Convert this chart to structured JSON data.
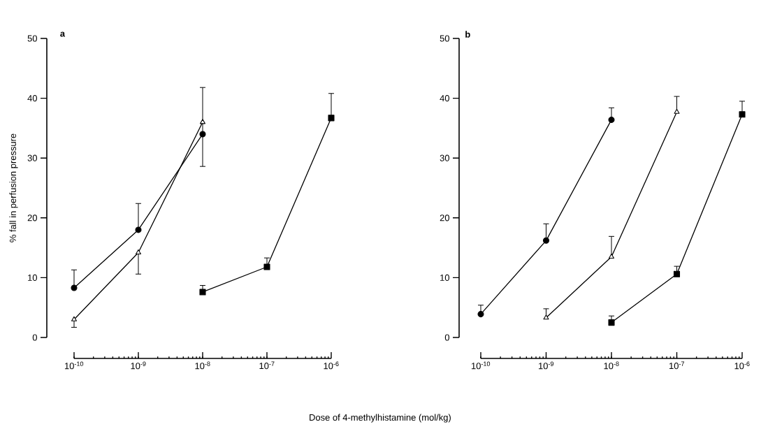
{
  "chart_data": [
    {
      "type": "line",
      "title": "a",
      "xlabel": "Dose of 4-methylhistamine  (mol/kg)",
      "ylabel": "% fall in perfusion pressure",
      "log": "x",
      "xlim": [
        1e-10,
        1e-06
      ],
      "ylim": [
        0,
        50
      ],
      "xticks": [
        {
          "value": 1e-10,
          "label": "10$^{-10}$"
        },
        {
          "value": 1e-09,
          "label": "10$^{-9}$"
        },
        {
          "value": 1e-08,
          "label": "10$^{-8}$"
        },
        {
          "value": 1e-07,
          "label": "10$^{-7}$"
        },
        {
          "value": 1e-06,
          "label": "10$^{-6}$"
        }
      ],
      "yticks": [
        0,
        10,
        20,
        30,
        40,
        50
      ],
      "series": [
        {
          "color": "#000000",
          "marker": "circle",
          "x": [
            1e-10,
            1e-09,
            1e-08
          ],
          "values": [
            8.3,
            18,
            34
          ],
          "errors": [
            [
              8.3,
              11.3
            ],
            [
              18,
              22.4
            ],
            null
          ]
        },
        {
          "color": "#000000",
          "marker": "triangle",
          "x": [
            1e-10,
            1e-09,
            1e-08
          ],
          "values": [
            3,
            14.2,
            36
          ],
          "errors": [
            [
              1.7,
              3
            ],
            [
              10.6,
              14.2
            ],
            [
              28.6,
              41.8
            ]
          ]
        },
        {
          "color": "#000000",
          "marker": "square",
          "x": [
            1e-08,
            1e-07,
            1e-06
          ],
          "values": [
            7.6,
            11.8,
            36.7
          ],
          "errors": [
            [
              7.6,
              8.7
            ],
            [
              11.8,
              13.3
            ],
            [
              36.7,
              40.8
            ]
          ]
        }
      ]
    },
    {
      "type": "line",
      "title": "b",
      "log": "x",
      "xlim": [
        1e-10,
        1e-06
      ],
      "ylim": [
        0,
        50
      ],
      "xticks": [
        {
          "value": 1e-10,
          "label": "10$^{-10}$"
        },
        {
          "value": 1e-09,
          "label": "10$^{-9}$"
        },
        {
          "value": 1e-08,
          "label": "10$^{-8}$"
        },
        {
          "value": 1e-07,
          "label": "10$^{-7}$"
        },
        {
          "value": 1e-06,
          "label": "10$^{-6}$"
        }
      ],
      "yticks": [
        0,
        10,
        20,
        30,
        40,
        50
      ],
      "series": [
        {
          "color": "#000000",
          "marker": "circle",
          "x": [
            1e-10,
            1e-09,
            1e-08
          ],
          "values": [
            3.9,
            16.2,
            36.4
          ],
          "errors": [
            [
              3.9,
              5.4
            ],
            [
              16.2,
              19
            ],
            [
              36.4,
              38.4
            ]
          ]
        },
        {
          "color": "#000000",
          "marker": "triangle",
          "x": [
            1e-09,
            1e-08,
            1e-07
          ],
          "values": [
            3.3,
            13.5,
            37.7
          ],
          "errors": [
            [
              3.3,
              4.8
            ],
            [
              13.5,
              16.9
            ],
            [
              37.7,
              40.3
            ]
          ]
        },
        {
          "color": "#000000",
          "marker": "square",
          "x": [
            1e-08,
            1e-07,
            1e-06
          ],
          "values": [
            2.5,
            10.6,
            37.3
          ],
          "errors": [
            [
              2.5,
              3.6
            ],
            [
              10.6,
              11.9
            ],
            [
              37.3,
              39.5
            ]
          ]
        }
      ]
    }
  ]
}
